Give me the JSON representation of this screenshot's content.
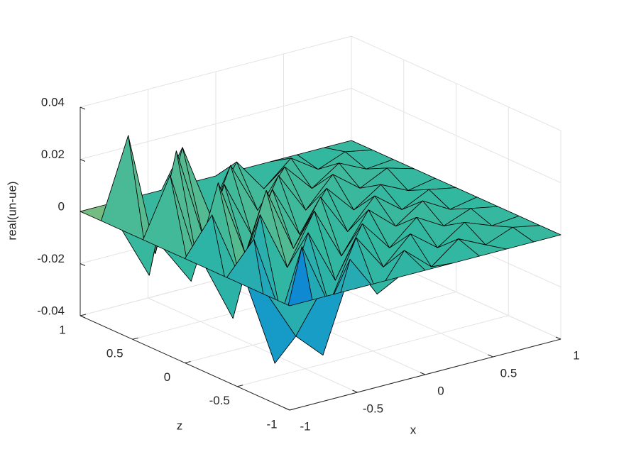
{
  "chart_data": {
    "type": "surface",
    "xlabel": "x",
    "ylabel": "z",
    "zlabel": "real(un-ue)",
    "x": [
      -1,
      -0.8,
      -0.6,
      -0.4,
      -0.2,
      0,
      0.2,
      0.4,
      0.6,
      0.8,
      1
    ],
    "y": [
      -1,
      -0.8,
      -0.6,
      -0.4,
      -0.2,
      0,
      0.2,
      0.4,
      0.6,
      0.8,
      1
    ],
    "values": [
      [
        0,
        0,
        0,
        0,
        0,
        0,
        0,
        0,
        0,
        0,
        0
      ],
      [
        0,
        -0.018,
        -0.028,
        0.006,
        -0.01,
        0.004,
        -0.005,
        0.003,
        -0.002,
        0.002,
        0
      ],
      [
        0,
        -0.032,
        0.01,
        -0.015,
        0.008,
        -0.006,
        0.004,
        -0.004,
        0.003,
        -0.001,
        0
      ],
      [
        0,
        0.012,
        -0.02,
        0.009,
        -0.012,
        0.007,
        -0.005,
        0.004,
        -0.002,
        0.002,
        0
      ],
      [
        0,
        -0.022,
        0.015,
        -0.008,
        0.011,
        -0.009,
        0.006,
        -0.003,
        0.004,
        -0.002,
        0
      ],
      [
        0,
        0.014,
        -0.012,
        0.018,
        -0.007,
        0.01,
        -0.006,
        0.005,
        -0.003,
        0.002,
        0
      ],
      [
        0,
        -0.015,
        0.02,
        -0.01,
        0.012,
        -0.008,
        0.007,
        -0.004,
        0.003,
        -0.002,
        0
      ],
      [
        0,
        0.022,
        -0.014,
        0.013,
        -0.009,
        0.011,
        -0.005,
        0.006,
        -0.002,
        0.003,
        0
      ],
      [
        0,
        -0.02,
        0.025,
        -0.011,
        0.014,
        -0.006,
        0.008,
        -0.003,
        0.004,
        -0.001,
        0
      ],
      [
        0,
        0.03,
        -0.018,
        0.02,
        -0.008,
        0.009,
        -0.004,
        0.005,
        -0.002,
        0.002,
        0
      ],
      [
        0,
        0,
        0,
        0,
        0,
        0,
        0,
        0,
        0,
        0,
        0
      ]
    ],
    "xlim": [
      -1,
      1
    ],
    "ylim": [
      -1,
      1
    ],
    "zlim": [
      -0.04,
      0.04
    ],
    "xticks": [
      -1,
      -0.5,
      0,
      0.5,
      1
    ],
    "yticks": [
      -1,
      -0.5,
      0,
      0.5,
      1
    ],
    "zticks": [
      -0.04,
      -0.02,
      0,
      0.02,
      0.04
    ],
    "grid": true,
    "edgecolor": "#000000",
    "colormap": "parula"
  }
}
